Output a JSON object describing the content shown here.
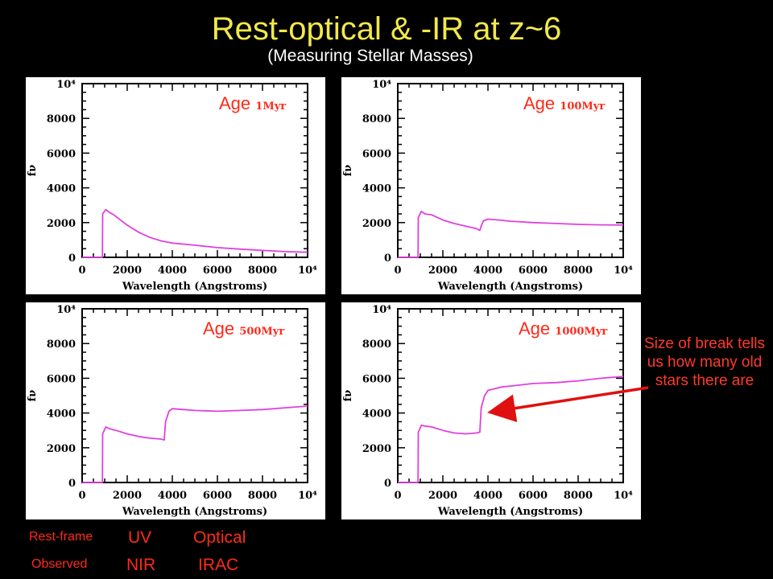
{
  "header": {
    "title": "Rest-optical & -IR at z~6",
    "subtitle": "(Measuring Stellar Masses)"
  },
  "chart_data": [
    {
      "type": "line",
      "panel_label": "Age",
      "age": "1Myr",
      "xlabel": "Wavelength (Angstroms)",
      "ylabel": "fν",
      "xlim": [
        0,
        10000
      ],
      "ylim": [
        0,
        10000
      ],
      "x_ticks": [
        "0",
        "2000",
        "4000",
        "6000",
        "8000",
        "10⁴"
      ],
      "y_ticks": [
        "0",
        "2000",
        "4000",
        "6000",
        "8000",
        "10⁴"
      ],
      "series": [
        {
          "x": [
            0,
            900,
            912,
            1050,
            1200,
            1400,
            1700,
            2000,
            2500,
            3000,
            3500,
            4000,
            5000,
            6000,
            7000,
            8000,
            9000,
            10000
          ],
          "y": [
            0,
            0,
            2500,
            2750,
            2600,
            2450,
            2150,
            1850,
            1450,
            1150,
            950,
            820,
            700,
            560,
            470,
            400,
            330,
            290
          ]
        }
      ]
    },
    {
      "type": "line",
      "panel_label": "Age",
      "age": "100Myr",
      "xlabel": "Wavelength (Angstroms)",
      "ylabel": "fν",
      "xlim": [
        0,
        10000
      ],
      "ylim": [
        0,
        10000
      ],
      "x_ticks": [
        "0",
        "2000",
        "4000",
        "6000",
        "8000",
        "10⁴"
      ],
      "y_ticks": [
        "0",
        "2000",
        "4000",
        "6000",
        "8000",
        "10⁴"
      ],
      "series": [
        {
          "x": [
            0,
            900,
            912,
            1050,
            1200,
            1500,
            2000,
            2500,
            3000,
            3500,
            3640,
            3700,
            3800,
            4000,
            4500,
            5000,
            6000,
            7000,
            8000,
            9000,
            10000
          ],
          "y": [
            0,
            0,
            2300,
            2650,
            2500,
            2450,
            2150,
            1950,
            1800,
            1650,
            1550,
            1800,
            2100,
            2200,
            2150,
            2080,
            2000,
            1950,
            1900,
            1870,
            1860
          ]
        }
      ]
    },
    {
      "type": "line",
      "panel_label": "Age",
      "age": "500Myr",
      "xlabel": "Wavelength (Angstroms)",
      "ylabel": "fν",
      "xlim": [
        0,
        10000
      ],
      "ylim": [
        0,
        10000
      ],
      "x_ticks": [
        "0",
        "2000",
        "4000",
        "6000",
        "8000",
        "10⁴"
      ],
      "y_ticks": [
        "0",
        "2000",
        "4000",
        "6000",
        "8000",
        "10⁴"
      ],
      "series": [
        {
          "x": [
            0,
            900,
            912,
            1050,
            1200,
            1500,
            2000,
            2500,
            3000,
            3500,
            3640,
            3700,
            3850,
            4000,
            4500,
            5000,
            6000,
            7000,
            8000,
            9000,
            10000
          ],
          "y": [
            0,
            0,
            2800,
            3200,
            3100,
            3000,
            2800,
            2650,
            2550,
            2500,
            2450,
            3500,
            4100,
            4250,
            4200,
            4150,
            4100,
            4150,
            4200,
            4300,
            4400
          ]
        }
      ]
    },
    {
      "type": "line",
      "panel_label": "Age",
      "age": "1000Myr",
      "xlabel": "Wavelength (Angstroms)",
      "ylabel": "fν",
      "xlim": [
        0,
        10000
      ],
      "ylim": [
        0,
        10000
      ],
      "x_ticks": [
        "0",
        "2000",
        "4000",
        "6000",
        "8000",
        "10⁴"
      ],
      "y_ticks": [
        "0",
        "2000",
        "4000",
        "6000",
        "8000",
        "10⁴"
      ],
      "series": [
        {
          "x": [
            0,
            900,
            912,
            1050,
            1200,
            1500,
            2000,
            2500,
            3000,
            3500,
            3640,
            3700,
            3850,
            4000,
            4300,
            4600,
            5000,
            6000,
            7000,
            8000,
            9000,
            10000
          ],
          "y": [
            0,
            0,
            2900,
            3300,
            3250,
            3200,
            3000,
            2850,
            2800,
            2850,
            2900,
            4300,
            5000,
            5300,
            5400,
            5500,
            5550,
            5700,
            5750,
            5850,
            6000,
            6100
          ]
        }
      ]
    }
  ],
  "annotation": "Size of break tells us how many old stars there are",
  "footer": {
    "rest_frame_label": "Rest-frame",
    "observed_label": "Observed",
    "uv": "UV",
    "nir": "NIR",
    "optical": "Optical",
    "irac": "IRAC"
  },
  "colors": {
    "curve": "#e040e0",
    "text_red": "#ff2a1a",
    "title_yellow": "#f2e84a",
    "arrow": "#e01010"
  }
}
